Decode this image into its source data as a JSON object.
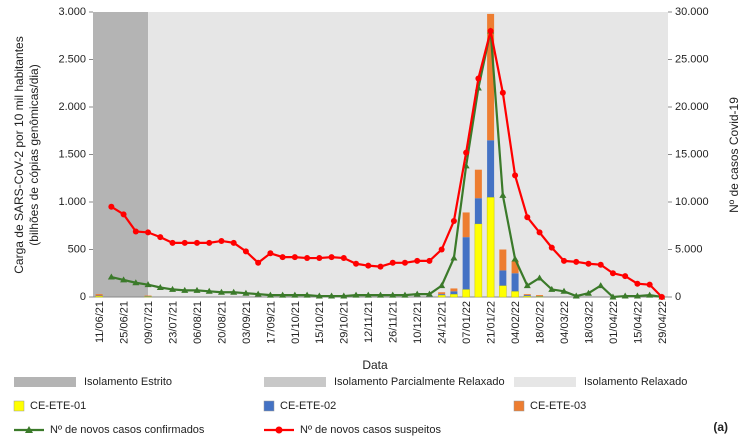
{
  "chart_data": {
    "type": "combo",
    "y_label": [
      "Carga de SARS-CoV-2 por 10 mil habitantes",
      "(bilhões de cópias genômicas/dia)"
    ],
    "y2_label": "Nº de casos Covid-19",
    "x_label": "Data",
    "annotation": "(a)",
    "categories": [
      "11/06/21",
      null,
      "25/06/21",
      null,
      "09/07/21",
      null,
      "23/07/21",
      null,
      "06/08/21",
      null,
      "20/08/21",
      null,
      "03/09/21",
      null,
      "17/09/21",
      null,
      "01/10/21",
      null,
      "15/10/21",
      null,
      "29/10/21",
      null,
      "12/11/21",
      null,
      "26/11/21",
      null,
      "10/12/21",
      null,
      "24/12/21",
      null,
      "07/01/22",
      null,
      "21/01/22",
      null,
      "04/02/22",
      null,
      "18/02/22",
      null,
      "04/03/22",
      null,
      "18/03/22",
      null,
      "01/04/22",
      null,
      "15/04/22",
      null,
      "29/04/22"
    ],
    "regions": [
      {
        "name": "Isolamento Estrito",
        "color": "#b4b4b4",
        "start": "11/06/21",
        "end": "09/07/21"
      },
      {
        "name": "Isolamento Parcialmente Relaxado",
        "color": "#c8c8c8"
      },
      {
        "name": "Isolamento Relaxado",
        "color": "#e6e6e6",
        "start": "09/07/21",
        "end": "29/04/22"
      }
    ],
    "series": [
      {
        "name": "CE-ETE-01",
        "kind": "bar",
        "color": "#ffff00",
        "values": [
          10,
          0,
          0,
          0,
          5,
          0,
          0,
          0,
          0,
          0,
          0,
          0,
          0,
          0,
          0,
          0,
          0,
          0,
          0,
          0,
          0,
          0,
          0,
          0,
          0,
          0,
          0,
          0,
          20,
          30,
          80,
          770,
          1050,
          120,
          60,
          10,
          5,
          0,
          0,
          0,
          0,
          0,
          0,
          0,
          0,
          0,
          0
        ]
      },
      {
        "name": "CE-ETE-02",
        "kind": "bar",
        "color": "#4472c4",
        "values": [
          5,
          0,
          0,
          0,
          5,
          0,
          0,
          0,
          0,
          0,
          0,
          0,
          0,
          0,
          0,
          0,
          0,
          0,
          0,
          0,
          0,
          0,
          0,
          0,
          0,
          0,
          0,
          0,
          10,
          30,
          550,
          270,
          600,
          160,
          190,
          10,
          5,
          0,
          0,
          0,
          0,
          0,
          0,
          0,
          0,
          0,
          0
        ]
      },
      {
        "name": "CE-ETE-03",
        "kind": "bar",
        "color": "#ed7d31",
        "values": [
          15,
          0,
          0,
          0,
          5,
          0,
          0,
          0,
          0,
          0,
          0,
          0,
          0,
          0,
          0,
          0,
          0,
          0,
          0,
          0,
          0,
          0,
          0,
          0,
          0,
          0,
          0,
          0,
          20,
          30,
          260,
          300,
          1330,
          220,
          130,
          10,
          10,
          0,
          0,
          0,
          0,
          0,
          0,
          0,
          0,
          0,
          0
        ]
      },
      {
        "name": "Nº de novos casos confirmados",
        "kind": "line",
        "marker": "triangle",
        "axis": "y2",
        "color": "#3b7a2a",
        "values": [
          null,
          2100,
          1800,
          1500,
          1300,
          1000,
          800,
          700,
          700,
          600,
          500,
          500,
          400,
          300,
          200,
          200,
          200,
          200,
          100,
          100,
          100,
          200,
          200,
          200,
          200,
          200,
          300,
          300,
          1200,
          4100,
          13800,
          22000,
          28000,
          10700,
          4000,
          1200,
          2000,
          800,
          600,
          100,
          400,
          1200,
          0,
          100,
          100,
          200,
          0
        ]
      },
      {
        "name": "Nº de novos casos suspeitos",
        "kind": "line",
        "marker": "circle",
        "axis": "y2",
        "color": "#ff0000",
        "values": [
          null,
          9500,
          8700,
          6900,
          6800,
          6300,
          5700,
          5700,
          5700,
          5700,
          5900,
          5700,
          4800,
          3600,
          4600,
          4200,
          4200,
          4100,
          4100,
          4200,
          4100,
          3500,
          3300,
          3200,
          3600,
          3600,
          3800,
          3800,
          5000,
          8000,
          15200,
          23000,
          28000,
          21500,
          12800,
          8400,
          6800,
          5200,
          3800,
          3700,
          3500,
          3400,
          2500,
          2200,
          1400,
          1300,
          0
        ]
      }
    ],
    "ylim": [
      0,
      3000
    ],
    "yticks": [
      0,
      500,
      {
        "value": 1000,
        "label": "1.000"
      },
      {
        "value": 1500,
        "label": "1.500"
      },
      {
        "value": 2000,
        "label": "2.000"
      },
      {
        "value": 2500,
        "label": "2.500"
      },
      {
        "value": 3000,
        "label": "3.000"
      }
    ],
    "y2lim": [
      0,
      30000
    ],
    "y2ticks": [
      0,
      {
        "value": 5000,
        "label": "5.000"
      },
      {
        "value": 10000,
        "label": "10.000"
      },
      {
        "value": 15000,
        "label": "15.000"
      },
      {
        "value": 20000,
        "label": "20.000"
      },
      {
        "value": 25000,
        "label": "25.000"
      },
      {
        "value": 30000,
        "label": "30.000"
      }
    ]
  }
}
